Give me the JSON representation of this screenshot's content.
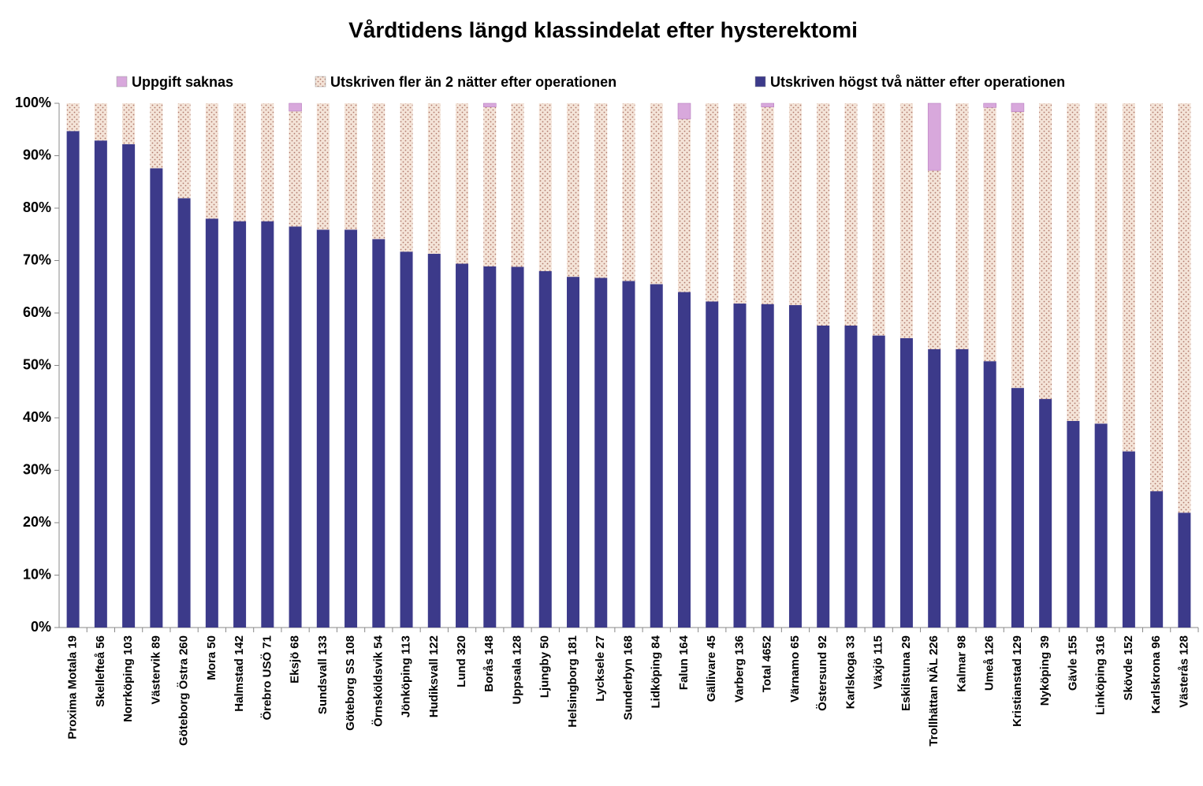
{
  "chart_data": {
    "type": "stacked_bar_100",
    "title": "Vårdtidens längd klassindelat efter hysterektomi",
    "categories": [
      "Proxima Motala  19",
      "Skellefteå  56",
      "Norrköping  103",
      "Västervik  89",
      "Göteborg Östra  260",
      "Mora  50",
      "Halmstad  142",
      "Örebro USÖ 71",
      "Eksjö  68",
      "Sundsvall  133",
      "Göteborg SS  108",
      "Örnsköldsvik  54",
      "Jönköping  113",
      "Hudiksvall  122",
      "Lund  320",
      "Borås  148",
      "Uppsala  128",
      "Ljungby  50",
      "Helsingborg  181",
      "Lycksele  27",
      "Sunderbyn  168",
      "Lidköping  84",
      "Falun  164",
      "Gällivare  45",
      "Varberg  136",
      "Total  4652",
      "Värnamo  65",
      "Östersund  92",
      "Karlskoga  33",
      "Växjö  115",
      "Eskilstuna  29",
      "Trollhättan NÄL  226",
      "Kalmar  98",
      "Umeå  126",
      "Kristianstad  129",
      "Nyköping  39",
      "Gävle  155",
      "Linköping  316",
      "Skövde  152",
      "Karlskrona  96",
      "Västerås  128"
    ],
    "series": [
      {
        "name": "Uppgift saknas",
        "color": "#d8a8dc",
        "values": [
          0,
          0,
          0,
          0,
          0,
          0,
          0,
          0,
          1.5,
          0,
          0,
          0,
          0,
          0,
          0,
          0.7,
          0,
          0,
          0,
          0,
          0,
          0,
          3,
          0,
          0,
          0.7,
          0,
          0,
          0,
          0,
          0,
          12.8,
          0,
          0.8,
          1.6,
          0,
          0,
          0,
          0,
          0,
          0
        ]
      },
      {
        "name": "Utskriven fler än 2 nätter efter operationen",
        "color": "#f4e4d8",
        "values": [
          5.3,
          7.1,
          7.8,
          12.4,
          18.1,
          22,
          22.5,
          22.5,
          22,
          24.1,
          24.1,
          25.9,
          28.3,
          28.7,
          30.6,
          30.4,
          31.2,
          32,
          33.1,
          33.3,
          33.9,
          34.5,
          33,
          37.8,
          38.2,
          37.6,
          38.5,
          42.4,
          42.4,
          44.3,
          44.8,
          34.1,
          46.9,
          48.4,
          52.7,
          56.4,
          60.6,
          61.1,
          66.4,
          74,
          78.1
        ]
      },
      {
        "name": "Utskriven högst två nätter efter operationen",
        "color": "#3c3a8a",
        "values": [
          94.7,
          92.9,
          92.2,
          87.6,
          81.9,
          78,
          77.5,
          77.5,
          76.5,
          75.9,
          75.9,
          74.1,
          71.7,
          71.3,
          69.4,
          68.9,
          68.8,
          68,
          66.9,
          66.7,
          66.1,
          65.5,
          64,
          62.2,
          61.8,
          61.7,
          61.5,
          57.6,
          57.6,
          55.7,
          55.2,
          53.1,
          53.1,
          50.8,
          45.7,
          43.6,
          39.4,
          38.9,
          33.6,
          26,
          21.9
        ]
      }
    ],
    "ylim": [
      0,
      100
    ],
    "yticks": [
      {
        "value": 0,
        "label": "0%"
      },
      {
        "value": 10,
        "label": "10%"
      },
      {
        "value": 20,
        "label": "20%"
      },
      {
        "value": 30,
        "label": "30%"
      },
      {
        "value": 40,
        "label": "40%"
      },
      {
        "value": 50,
        "label": "50%"
      },
      {
        "value": 60,
        "label": "60%"
      },
      {
        "value": 70,
        "label": "70%"
      },
      {
        "value": 80,
        "label": "80%"
      },
      {
        "value": 90,
        "label": "90%"
      },
      {
        "value": 100,
        "label": "100%"
      }
    ],
    "legend": "top"
  }
}
